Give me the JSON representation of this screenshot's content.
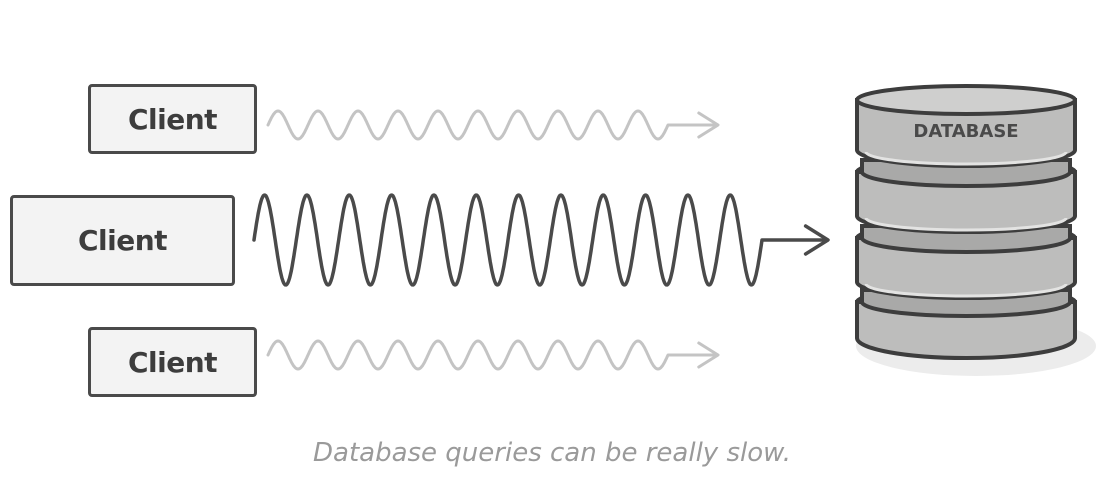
{
  "clients": [
    {
      "label": "Client",
      "traffic": "light"
    },
    {
      "label": "Client",
      "traffic": "heavy"
    },
    {
      "label": "Client",
      "traffic": "light"
    }
  ],
  "database": {
    "label": "DATABASE"
  },
  "caption": "Database queries can be really slow.",
  "colors": {
    "box_border": "#4a4a4a",
    "box_fill": "#f3f3f3",
    "light_wave": "#c4c4c4",
    "heavy_wave": "#4a4a4a",
    "db_fill": "#bdbdbc",
    "caption_text": "#9a9a9a"
  }
}
